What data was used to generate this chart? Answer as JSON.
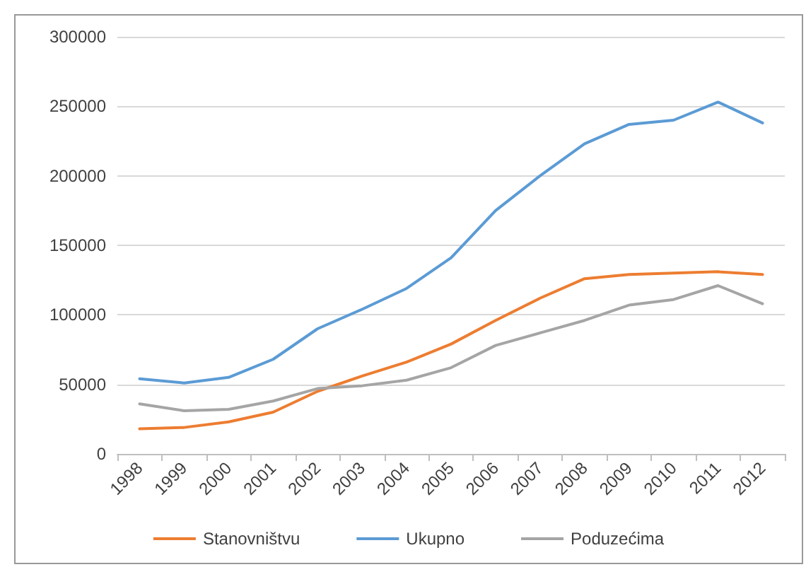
{
  "chart_data": {
    "type": "line",
    "categories": [
      "1998",
      "1999",
      "2000",
      "2001",
      "2002",
      "2003",
      "2004",
      "2005",
      "2006",
      "2007",
      "2008",
      "2009",
      "2010",
      "2011",
      "2012"
    ],
    "series": [
      {
        "name": "Stanovništvu",
        "color": "#ed7d31",
        "values": [
          18000,
          19000,
          23000,
          30000,
          45000,
          56000,
          66000,
          79000,
          96000,
          112000,
          126000,
          129000,
          130000,
          131000,
          129000
        ]
      },
      {
        "name": "Ukupno",
        "color": "#5b9bd5",
        "values": [
          54000,
          51000,
          55000,
          68000,
          90000,
          104000,
          119000,
          141000,
          175000,
          200000,
          223000,
          237000,
          240000,
          253000,
          238000
        ]
      },
      {
        "name": "Poduzećima",
        "color": "#a5a5a5",
        "values": [
          36000,
          31000,
          32000,
          38000,
          47000,
          49000,
          53000,
          62000,
          78000,
          87000,
          96000,
          107000,
          111000,
          121000,
          108000
        ]
      }
    ],
    "ylim": [
      0,
      300000
    ],
    "yticks": [
      0,
      50000,
      100000,
      150000,
      200000,
      250000,
      300000
    ],
    "grid": "y",
    "legend": "bottom",
    "marker": "none",
    "line_style": "solid"
  }
}
